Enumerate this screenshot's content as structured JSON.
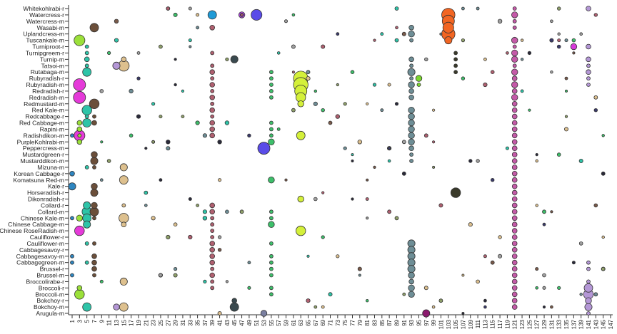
{
  "chart_data": {
    "type": "scatter",
    "subtype": "bubble",
    "title": "",
    "xlabel": "",
    "ylabel": "",
    "grid": false,
    "legend": null,
    "x_range": [
      1,
      147
    ],
    "x_ticks": [
      1,
      3,
      5,
      7,
      9,
      11,
      13,
      15,
      17,
      19,
      21,
      23,
      25,
      27,
      29,
      31,
      33,
      35,
      37,
      39,
      41,
      43,
      45,
      47,
      49,
      51,
      53,
      55,
      57,
      59,
      61,
      63,
      65,
      67,
      69,
      71,
      73,
      75,
      77,
      79,
      81,
      83,
      85,
      87,
      89,
      91,
      93,
      95,
      97,
      99,
      101,
      103,
      105,
      107,
      109,
      111,
      113,
      115,
      117,
      119,
      121,
      123,
      125,
      127,
      129,
      131,
      133,
      135,
      137,
      139,
      141,
      143,
      145,
      147
    ],
    "categories": [
      "Whitekohlrabi-r",
      "Watercress-r",
      "Watercress-m",
      "Wasabi-m",
      "Uplandcress-m",
      "Tuscankale-m",
      "Turniproot-r",
      "Turnipgreem-r",
      "Turnip-m",
      "Tatsoi-m",
      "Rutabaga-m",
      "Rubyradish-r",
      "Rubyradish-m",
      "Redradish-r",
      "Redradish-m",
      "Redmustard-m",
      "Red Kale-m",
      "Redcabbage-r",
      "Red Cabbage-m",
      "Rapini-m",
      "Radishdikon-m",
      "PurpleKohlrabi-m",
      "Peppercress-m",
      "Mustardgreen-r",
      "Mustarddikon-m",
      "Mizuna-m",
      "Korean Cabbage-r",
      "Komatsuna Red-m",
      "Kale-r",
      "Horseradish-r",
      "Dikonradish-r",
      "Collard-r",
      "Collard-m",
      "Chinese Kale-m",
      "Chinese Cabbage-m",
      "Chinese RoseRadish-m",
      "Cauliflower-r",
      "Cauliflower-m",
      "Cabbagesavoy-r",
      "Cabbagesavoy-m",
      "Cabbagegreen-m",
      "Brussel-r",
      "Brussel-m",
      "Broccolirabe-r",
      "Broccoli-r",
      "Broccoli-m",
      "Bokchoy-r",
      "Bokchoy-m",
      "Arugula-m"
    ],
    "columns": [
      {
        "x": 1,
        "color": "#2e86c1",
        "sizes": {
          "Radishdikon-m": 3,
          "Korean Cabbage-r": 4,
          "Kale-r": 6,
          "Cabbagesavoy-m": 3,
          "Cabbagegreen-m": 3,
          "Brussel-m": 3,
          "Chinese Kale-m": 3
        }
      },
      {
        "x": 3,
        "color": "#9be03a",
        "sizes": {
          "Tuscankale-m": 9,
          "Red Cabbage-m": 4,
          "Rapini-m": 4,
          "Radishdikon-m": 3,
          "Chinese Kale-m": 5,
          "Broccoli-r": 4,
          "Broccoli-m": 8,
          "PurpleKohlrabi-m": 4
        }
      },
      {
        "x": 3,
        "color": "#e53ad9",
        "sizes": {
          "Rubyradish-m": 10,
          "Redradish-m": 10,
          "Radishdikon-m": 9,
          "Chinese RoseRadish-m": 8
        }
      },
      {
        "x": 5,
        "color": "#2ec4a8",
        "sizes": {
          "Turniproot-r": 3,
          "Turnipgreem-r": 3,
          "Turnip-m": 4,
          "Tatsoi-m": 3,
          "Rutabaga-m": 7,
          "Red Kale-m": 8,
          "Redcabbage-r": 3,
          "Red Cabbage-m": 7,
          "Collard-r": 6,
          "Collard-m": 8,
          "Chinese Kale-m": 7,
          "Chinese Cabbage-m": 6,
          "Mizuna-m": 3,
          "Bokchoy-m": 7,
          "Cabbagegreen-m": 3,
          "Cauliflower-m": 3
        }
      },
      {
        "x": 7,
        "color": "#6b4f3a",
        "sizes": {
          "Wasabi-m": 7,
          "Redmustard-m": 8,
          "Mustardgreen-r": 5,
          "Mustarddikon-m": 6,
          "Kale-r": 5,
          "Horseradish-r": 6,
          "Collard-r": 5,
          "Collard-m": 7,
          "Chinese Kale-m": 3,
          "Cauliflower-m": 3,
          "Cabbagesavoy-m": 4,
          "Cabbagegreen-m": 4,
          "Brussel-r": 4,
          "Brussel-m": 3,
          "Redcabbage-r": 3,
          "Red Cabbage-m": 4,
          "Mizuna-m": 3
        }
      },
      {
        "x": 15,
        "color": "#ddc08e",
        "sizes": {
          "Tatsoi-m": 9,
          "Turnip-m": 4,
          "Mizuna-m": 6,
          "Komatsuna Red-m": 7,
          "Chinese Kale-m": 8,
          "Chinese Cabbage-m": 4,
          "Collard-r": 3,
          "Broccolirabe-r": 6,
          "Bokchoy-m": 7
        }
      },
      {
        "x": 13,
        "color": "#b497d6",
        "sizes": {
          "Tatsoi-m": 6,
          "Bokchoy-m": 5
        }
      },
      {
        "x": 27,
        "color": "#d9b4b4",
        "sizes": {
          "Whitekohlrabi-r": 3
        }
      },
      {
        "x": 39,
        "color": "#b06070",
        "sizes": {
          "Turnipgreem-r": 3,
          "Tatsoi-m": 3,
          "Rutabaga-m": 4,
          "Rubyradish-r": 3,
          "Rubyradish-m": 4,
          "Redradish-r": 3,
          "Redradish-m": 4,
          "Redmustard-m": 3,
          "Red Kale-m": 4,
          "Redcabbage-r": 3,
          "Red Cabbage-m": 4,
          "Rapini-m": 4,
          "Radishdikon-m": 4,
          "Chinese RoseRadish-m": 3,
          "Collard-r": 4,
          "Collard-m": 4,
          "Chinese Kale-m": 3,
          "Chinese Cabbage-m": 3,
          "Cauliflower-r": 3,
          "Cauliflower-m": 4,
          "Cabbagesavoy-r": 4,
          "Cabbagesavoy-m": 4,
          "Cabbagegreen-m": 4,
          "Brussel-r": 3,
          "Brussel-m": 4,
          "Broccolirabe-r": 3,
          "Broccoli-r": 3,
          "Wasabi-m": 4
        }
      },
      {
        "x": 39,
        "color": "#1f9ad6",
        "sizes": {
          "Watercress-r": 7
        }
      },
      {
        "x": 45,
        "color": "#3a4a4f",
        "sizes": {
          "Turnip-m": 6,
          "Bokchoy-m": 7,
          "Bokchoy-r": 4
        }
      },
      {
        "x": 47,
        "color": "#a94ad9",
        "sizes": {
          "Watercress-r": 5
        }
      },
      {
        "x": 51,
        "color": "#5a4ce8",
        "sizes": {
          "Watercress-r": 9
        }
      },
      {
        "x": 53,
        "color": "#5a4ce8",
        "sizes": {
          "Peppercress-m": 10
        }
      },
      {
        "x": 53,
        "color": "#7a7fa0",
        "sizes": {
          "Arugula-m": 5
        }
      },
      {
        "x": 55,
        "color": "#3dbf6a",
        "sizes": {
          "Rutabaga-m": 3,
          "Rubyradish-r": 3,
          "Rubyradish-m": 3,
          "Redradish-r": 3,
          "Redradish-m": 3,
          "Red Cabbage-m": 3,
          "Rapini-m": 3,
          "Radishdikon-m": 3,
          "PurpleKohlrabi-m": 5,
          "Komatsuna Red-m": 5,
          "Collard-m": 3,
          "Chinese Kale-m": 3,
          "Chinese Cabbage-m": 5,
          "Cauliflower-m": 3,
          "Cabbagesavoy-m": 3,
          "Cabbagegreen-m": 3,
          "Brussel-r": 3,
          "Brussel-m": 3,
          "Broccoli-r": 3,
          "Broccoli-m": 3
        }
      },
      {
        "x": 63,
        "color": "#d4f03a",
        "sizes": {
          "Rubyradish-r": 12,
          "Rubyradish-m": 12,
          "Redradish-r": 10,
          "Redradish-m": 8,
          "Redmustard-m": 5,
          "Radishdikon-m": 7,
          "Dikonradish-r": 5,
          "Chinese RoseRadish-m": 8
        }
      },
      {
        "x": 93,
        "color": "#6e8e96",
        "sizes": {
          "Wasabi-m": 4,
          "Uplandcress-m": 5,
          "Tuscankale-m": 3,
          "Turnip-m": 4,
          "Tatsoi-m": 3,
          "Rutabaga-m": 6,
          "Rubyradish-r": 3,
          "Rubyradish-m": 5,
          "Redradish-r": 4,
          "Redradish-m": 4,
          "Red Kale-m": 5,
          "Redcabbage-r": 5,
          "Red Cabbage-m": 5,
          "Rapini-m": 5,
          "Radishdikon-m": 5,
          "PurpleKohlrabi-m": 5,
          "Peppercress-m": 4,
          "Mustardgreen-r": 3,
          "Mustarddikon-m": 3,
          "Cauliflower-m": 6,
          "Cabbagesavoy-r": 6,
          "Cabbagesavoy-m": 6,
          "Cabbagegreen-m": 6,
          "Brussel-r": 6,
          "Brussel-m": 5,
          "Broccolirabe-r": 4,
          "Broccoli-r": 5,
          "Broccoli-m": 5
        }
      },
      {
        "x": 95,
        "color": "#7bd62e",
        "sizes": {
          "Rubyradish-r": 5,
          "Rubyradish-m": 3
        }
      },
      {
        "x": 97,
        "color": "#8b1a6e",
        "sizes": {
          "Arugula-m": 6
        }
      },
      {
        "x": 103,
        "color": "#f26522",
        "sizes": {
          "Watercress-r": 11,
          "Watercress-m": 10,
          "Wasabi-m": 9,
          "Uplandcress-m": 11,
          "Tuscankale-m": 6
        }
      },
      {
        "x": 105,
        "color": "#3a3a2a",
        "sizes": {
          "Horseradish-r": 8,
          "Turnipgreem-r": 3,
          "Turnip-m": 3,
          "Tatsoi-m": 3,
          "Rutabaga-m": 3
        }
      },
      {
        "x": 121,
        "color": "#c45aa8",
        "sizes": {
          "Whitekohlrabi-r": 3,
          "Watercress-r": 5,
          "Watercress-m": 3,
          "Wasabi-m": 3,
          "Tuscankale-m": 5,
          "Turniproot-r": 3,
          "Turnipgreem-r": 5,
          "Turnip-m": 5,
          "Tatsoi-m": 3,
          "Rutabaga-m": 5,
          "Rubyradish-r": 4,
          "Rubyradish-m": 5,
          "Redradish-r": 4,
          "Redradish-m": 5,
          "Redmustard-m": 4,
          "Red Kale-m": 4,
          "Redcabbage-r": 4,
          "Red Cabbage-m": 4,
          "Rapini-m": 4,
          "Radishdikon-m": 4,
          "PurpleKohlrabi-m": 4,
          "Peppercress-m": 4,
          "Mustardgreen-r": 4,
          "Mustarddikon-m": 4,
          "Mizuna-m": 4,
          "Korean Cabbage-r": 4,
          "Komatsuna Red-m": 4,
          "Kale-r": 4,
          "Horseradish-r": 4,
          "Dikonradish-r": 4,
          "Collard-r": 4,
          "Collard-m": 4,
          "Chinese Kale-m": 4,
          "Chinese Cabbage-m": 4,
          "Chinese RoseRadish-m": 4,
          "Cauliflower-r": 4,
          "Cauliflower-m": 4,
          "Cabbagesavoy-r": 4,
          "Cabbagesavoy-m": 4,
          "Cabbagegreen-m": 4,
          "Brussel-r": 4,
          "Brussel-m": 4,
          "Broccolirabe-r": 4,
          "Broccoli-r": 4,
          "Broccoli-m": 4,
          "Bokchoy-r": 4,
          "Bokchoy-m": 4
        }
      },
      {
        "x": 141,
        "color": "#b497d6",
        "sizes": {
          "Whitekohlrabi-r": 4,
          "Turniproot-r": 4,
          "Turnip-m": 4,
          "Tatsoi-m": 3,
          "Rutabaga-m": 4,
          "Rubyradish-r": 3,
          "Rubyradish-m": 3,
          "Broccolirabe-r": 3,
          "Broccoli-r": 7,
          "Broccoli-m": 8,
          "Bokchoy-r": 5,
          "Bokchoy-m": 6,
          "Arugula-m": 3,
          "Cabbagegreen-m": 3,
          "Brussel-r": 3
        }
      },
      {
        "x": 137,
        "color": "#d63ad9",
        "sizes": {
          "Turniproot-r": 5
        }
      }
    ]
  }
}
